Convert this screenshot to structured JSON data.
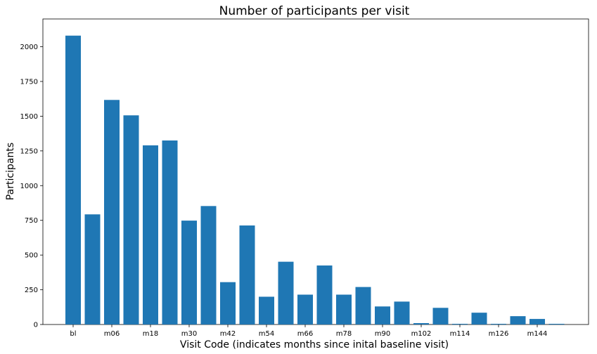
{
  "chart_data": {
    "type": "bar",
    "title": "Number of participants per visit",
    "xlabel": "Visit Code (indicates months since inital baseline visit)",
    "ylabel": "Participants",
    "ylim": [
      0,
      2200
    ],
    "yticks": [
      0,
      250,
      500,
      750,
      1000,
      1250,
      1500,
      1750,
      2000
    ],
    "ytick_labels": [
      "0",
      "250",
      "500",
      "750",
      "1000",
      "1250",
      "1500",
      "1750",
      "2000"
    ],
    "xtick_labels": [
      "bl",
      "m06",
      "m18",
      "m30",
      "m42",
      "m54",
      "m66",
      "m78",
      "m90",
      "m102",
      "m114",
      "m126",
      "m144"
    ],
    "xtick_positions": [
      0,
      2,
      4,
      6,
      8,
      10,
      12,
      14,
      16,
      18,
      20,
      22,
      24
    ],
    "values": [
      2080,
      793,
      1617,
      1506,
      1290,
      1325,
      748,
      853,
      305,
      713,
      200,
      452,
      215,
      425,
      215,
      270,
      130,
      165,
      10,
      120,
      5,
      85,
      5,
      60,
      40,
      5
    ],
    "bar_color": "#1f77b4",
    "grid": false
  }
}
